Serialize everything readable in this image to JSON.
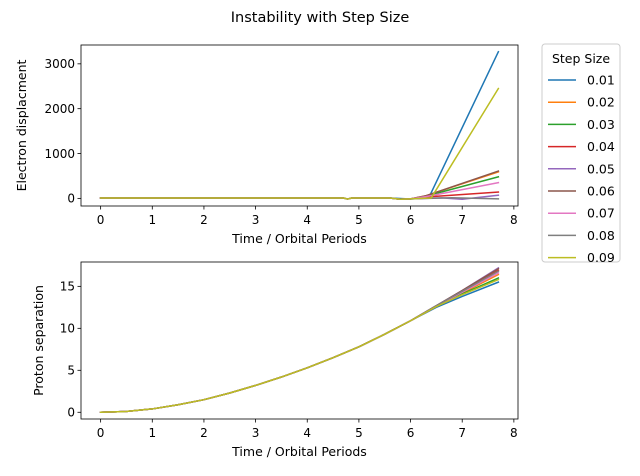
{
  "chart_data": {
    "title": "Instability with Step Size",
    "legend": {
      "title": "Step Size",
      "placement": "outside-right",
      "entries": [
        {
          "label": "0.01",
          "color": "#1f77b4"
        },
        {
          "label": "0.02",
          "color": "#ff7f0e"
        },
        {
          "label": "0.03",
          "color": "#2ca02c"
        },
        {
          "label": "0.04",
          "color": "#d62728"
        },
        {
          "label": "0.05",
          "color": "#9467bd"
        },
        {
          "label": "0.06",
          "color": "#8c564b"
        },
        {
          "label": "0.07",
          "color": "#e377c2"
        },
        {
          "label": "0.08",
          "color": "#7f7f7f"
        },
        {
          "label": "0.09",
          "color": "#bcbd22"
        }
      ]
    },
    "subplots": [
      {
        "type": "line",
        "xlabel": "Time / Orbital Periods",
        "ylabel": "Electron displacment",
        "xlim": [
          -0.38,
          8.08
        ],
        "ylim": [
          -170,
          3420
        ],
        "xticks": [
          0,
          1,
          2,
          3,
          4,
          5,
          6,
          7,
          8
        ],
        "yticks": [
          0,
          1000,
          2000,
          3000
        ],
        "grid": false,
        "series": [
          {
            "color": "#1f77b4",
            "x": [
              0,
              4.7,
              4.78,
              4.86,
              5.6,
              6.0,
              6.35,
              7.7
            ],
            "y": [
              8,
              8,
              -15,
              8,
              8,
              -15,
              8,
              3270
            ]
          },
          {
            "color": "#ff7f0e",
            "x": [
              0,
              4.7,
              4.78,
              4.86,
              5.6,
              5.8,
              6.0,
              6.3,
              7.7
            ],
            "y": [
              8,
              8,
              -15,
              8,
              8,
              -20,
              -10,
              60,
              590
            ]
          },
          {
            "color": "#2ca02c",
            "x": [
              0,
              4.7,
              4.78,
              4.86,
              5.6,
              5.8,
              6.0,
              6.3,
              7.7
            ],
            "y": [
              8,
              8,
              -15,
              8,
              8,
              -20,
              -10,
              50,
              480
            ]
          },
          {
            "color": "#d62728",
            "x": [
              0,
              4.7,
              4.78,
              4.86,
              5.6,
              5.8,
              6.0,
              6.3,
              7.7
            ],
            "y": [
              8,
              8,
              -15,
              8,
              8,
              -20,
              -10,
              30,
              140
            ]
          },
          {
            "color": "#9467bd",
            "x": [
              0,
              4.7,
              4.78,
              4.86,
              5.6,
              5.8,
              6.0,
              6.6,
              7.0,
              7.7
            ],
            "y": [
              8,
              8,
              -15,
              8,
              8,
              -20,
              -10,
              10,
              -20,
              70
            ]
          },
          {
            "color": "#8c564b",
            "x": [
              0,
              4.7,
              4.78,
              4.86,
              5.6,
              5.8,
              6.0,
              6.3,
              7.7
            ],
            "y": [
              8,
              8,
              -15,
              8,
              8,
              -20,
              -10,
              60,
              610
            ]
          },
          {
            "color": "#e377c2",
            "x": [
              0,
              4.7,
              4.78,
              4.86,
              5.6,
              5.8,
              6.0,
              6.3,
              7.7
            ],
            "y": [
              8,
              8,
              -15,
              8,
              8,
              -20,
              -10,
              40,
              350
            ]
          },
          {
            "color": "#7f7f7f",
            "x": [
              0,
              4.7,
              4.78,
              4.86,
              5.6,
              5.8,
              6.0,
              6.8,
              7.7
            ],
            "y": [
              8,
              8,
              -15,
              8,
              8,
              -20,
              -10,
              15,
              -10
            ]
          },
          {
            "color": "#bcbd22",
            "x": [
              0,
              4.7,
              4.78,
              4.86,
              5.6,
              5.8,
              6.0,
              6.4,
              7.7
            ],
            "y": [
              8,
              8,
              -15,
              8,
              8,
              -20,
              -10,
              10,
              2450
            ]
          }
        ]
      },
      {
        "type": "line",
        "xlabel": "Time / Orbital Periods",
        "ylabel": "Proton separation",
        "xlim": [
          -0.38,
          8.08
        ],
        "ylim": [
          -0.8,
          17.9
        ],
        "xticks": [
          0,
          1,
          2,
          3,
          4,
          5,
          6,
          7,
          8
        ],
        "yticks": [
          0,
          5,
          10,
          15
        ],
        "grid": false,
        "series": [
          {
            "color": "#1f77b4",
            "x": [
              0,
              0.5,
              1,
              1.5,
              2,
              2.5,
              3,
              3.5,
              4,
              4.5,
              5,
              5.5,
              6,
              6.5,
              7,
              7.7
            ],
            "y": [
              0,
              0.1,
              0.4,
              0.9,
              1.5,
              2.3,
              3.2,
              4.2,
              5.3,
              6.5,
              7.8,
              9.3,
              10.9,
              12.5,
              13.8,
              15.5
            ]
          },
          {
            "color": "#ff7f0e",
            "x": [
              0,
              0.5,
              1,
              1.5,
              2,
              2.5,
              3,
              3.5,
              4,
              4.5,
              5,
              5.5,
              6,
              6.5,
              7,
              7.7
            ],
            "y": [
              0,
              0.1,
              0.4,
              0.9,
              1.5,
              2.3,
              3.2,
              4.2,
              5.3,
              6.5,
              7.8,
              9.3,
              10.9,
              12.6,
              14.2,
              16.4
            ]
          },
          {
            "color": "#2ca02c",
            "x": [
              0,
              0.5,
              1,
              1.5,
              2,
              2.5,
              3,
              3.5,
              4,
              4.5,
              5,
              5.5,
              6,
              6.5,
              7,
              7.7
            ],
            "y": [
              0,
              0.1,
              0.4,
              0.9,
              1.5,
              2.3,
              3.2,
              4.2,
              5.3,
              6.5,
              7.8,
              9.3,
              10.9,
              12.6,
              14.1,
              16.0
            ]
          },
          {
            "color": "#d62728",
            "x": [
              0,
              0.5,
              1,
              1.5,
              2,
              2.5,
              3,
              3.5,
              4,
              4.5,
              5,
              5.5,
              6,
              6.5,
              7,
              7.7
            ],
            "y": [
              0,
              0.1,
              0.4,
              0.9,
              1.5,
              2.3,
              3.2,
              4.2,
              5.3,
              6.5,
              7.8,
              9.3,
              10.9,
              12.7,
              14.4,
              16.9
            ]
          },
          {
            "color": "#9467bd",
            "x": [
              0,
              0.5,
              1,
              1.5,
              2,
              2.5,
              3,
              3.5,
              4,
              4.5,
              5,
              5.5,
              6,
              6.5,
              7,
              7.7
            ],
            "y": [
              0,
              0.1,
              0.4,
              0.9,
              1.5,
              2.3,
              3.2,
              4.2,
              5.3,
              6.5,
              7.8,
              9.3,
              10.9,
              12.7,
              14.5,
              17.2
            ]
          },
          {
            "color": "#8c564b",
            "x": [
              0,
              0.5,
              1,
              1.5,
              2,
              2.5,
              3,
              3.5,
              4,
              4.5,
              5,
              5.5,
              6,
              6.5,
              7,
              7.7
            ],
            "y": [
              0,
              0.1,
              0.4,
              0.9,
              1.5,
              2.3,
              3.2,
              4.2,
              5.3,
              6.5,
              7.8,
              9.3,
              10.9,
              12.7,
              14.5,
              17.1
            ]
          },
          {
            "color": "#e377c2",
            "x": [
              0,
              0.5,
              1,
              1.5,
              2,
              2.5,
              3,
              3.5,
              4,
              4.5,
              5,
              5.5,
              6,
              6.5,
              7,
              7.7
            ],
            "y": [
              0,
              0.1,
              0.4,
              0.9,
              1.5,
              2.3,
              3.2,
              4.2,
              5.3,
              6.5,
              7.8,
              9.3,
              10.9,
              12.6,
              14.3,
              16.6
            ]
          },
          {
            "color": "#7f7f7f",
            "x": [
              0,
              0.5,
              1,
              1.5,
              2,
              2.5,
              3,
              3.5,
              4,
              4.5,
              5,
              5.5,
              6,
              6.5,
              7,
              7.7
            ],
            "y": [
              0,
              0.1,
              0.4,
              0.9,
              1.5,
              2.3,
              3.2,
              4.2,
              5.3,
              6.5,
              7.8,
              9.3,
              10.9,
              12.7,
              14.4,
              16.8
            ]
          },
          {
            "color": "#bcbd22",
            "x": [
              0,
              0.5,
              1,
              1.5,
              2,
              2.5,
              3,
              3.5,
              4,
              4.5,
              5,
              5.5,
              6,
              6.5,
              7,
              7.7
            ],
            "y": [
              0,
              0.1,
              0.4,
              0.9,
              1.5,
              2.3,
              3.2,
              4.2,
              5.3,
              6.5,
              7.8,
              9.3,
              10.9,
              12.6,
              14.0,
              15.8
            ]
          }
        ]
      }
    ]
  }
}
